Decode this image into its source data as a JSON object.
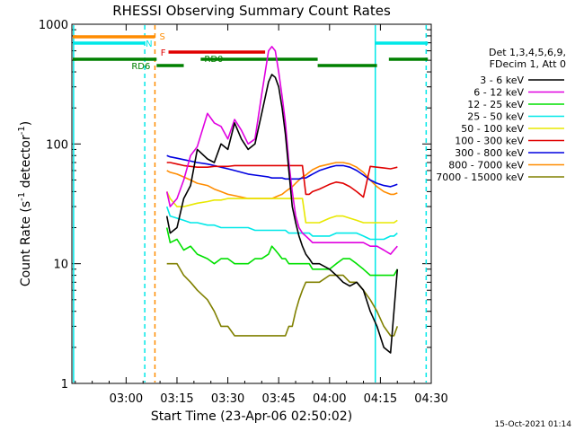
{
  "chart_data": {
    "type": "line",
    "title": "RHESSI Observing Summary Count Rates",
    "xlabel": "Start Time (23-Apr-06 02:50:02)",
    "ylabel": "Count Rate (s⁻¹ detector⁻¹)",
    "ylabel_main": "Count Rate (s",
    "ylabel_sup1": "-1",
    "ylabel_mid": " detector",
    "ylabel_sup2": "-1",
    "ylabel_end": ")",
    "yscale": "log",
    "ylim": [
      1,
      1000
    ],
    "xlim_minutes": [
      -6,
      100
    ],
    "x_ticks": [
      {
        "label": "03:00",
        "value": 10
      },
      {
        "label": "03:15",
        "value": 25
      },
      {
        "label": "03:30",
        "value": 40
      },
      {
        "label": "03:45",
        "value": 55
      },
      {
        "label": "04:00",
        "value": 70
      },
      {
        "label": "04:15",
        "value": 85
      },
      {
        "label": "04:30",
        "value": 100
      }
    ],
    "y_ticks": [
      {
        "label": "1",
        "value": 1
      },
      {
        "label": "10",
        "value": 10
      },
      {
        "label": "100",
        "value": 100
      },
      {
        "label": "1000",
        "value": 1000
      }
    ],
    "legend_header": [
      "Det 1,3,4,5,6,9,",
      "FDecim 1, Att 0"
    ],
    "series": [
      {
        "name": "3 - 6 keV",
        "color": "#000000",
        "x": [
          22,
          23,
          25,
          27,
          29,
          31,
          34,
          36,
          38,
          40,
          42,
          44,
          46,
          48,
          50,
          52,
          53,
          54,
          55,
          56,
          57,
          58,
          59,
          60,
          61,
          62,
          63,
          64,
          65,
          67,
          70,
          72,
          74,
          76,
          78,
          80,
          82,
          84,
          86,
          88,
          89,
          90
        ],
        "y": [
          25,
          18,
          20,
          35,
          45,
          90,
          75,
          70,
          100,
          90,
          150,
          110,
          90,
          100,
          180,
          330,
          380,
          360,
          300,
          200,
          120,
          60,
          30,
          22,
          17,
          14,
          12,
          11,
          10,
          10,
          9,
          8,
          7,
          6.5,
          7,
          6,
          4,
          3,
          2,
          1.8,
          4,
          9
        ]
      },
      {
        "name": "6 - 12 keV",
        "color": "#e000e0",
        "x": [
          22,
          23,
          25,
          27,
          29,
          31,
          34,
          36,
          38,
          40,
          42,
          44,
          46,
          48,
          50,
          52,
          53,
          54,
          55,
          56,
          57,
          58,
          59,
          60,
          61,
          62,
          63,
          64,
          65,
          67,
          70,
          72,
          74,
          76,
          78,
          80,
          82,
          84,
          86,
          88,
          89,
          90
        ],
        "y": [
          40,
          30,
          35,
          50,
          80,
          95,
          180,
          150,
          140,
          110,
          160,
          130,
          100,
          110,
          260,
          600,
          650,
          600,
          400,
          250,
          150,
          70,
          40,
          25,
          20,
          18,
          17,
          16,
          15,
          15,
          15,
          15,
          15,
          15,
          15,
          15,
          14,
          14,
          13,
          12,
          13,
          14
        ]
      },
      {
        "name": "12 - 25 keV",
        "color": "#00e000",
        "x": [
          22,
          23,
          25,
          27,
          29,
          31,
          34,
          36,
          38,
          40,
          42,
          44,
          46,
          48,
          50,
          52,
          53,
          54,
          55,
          56,
          57,
          58,
          59,
          60,
          61,
          62,
          63,
          64,
          65,
          67,
          70,
          72,
          74,
          76,
          78,
          80,
          82,
          84,
          86,
          88,
          89,
          90
        ],
        "y": [
          20,
          15,
          16,
          13,
          14,
          12,
          11,
          10,
          11,
          11,
          10,
          10,
          10,
          11,
          11,
          12,
          14,
          13,
          12,
          11,
          11,
          10,
          10,
          10,
          10,
          10,
          10,
          10,
          9,
          9,
          9,
          10,
          11,
          11,
          10,
          9,
          8,
          8,
          8,
          8,
          8,
          9
        ]
      },
      {
        "name": "25 - 50 keV",
        "color": "#00e8e8",
        "x": [
          22,
          23,
          25,
          27,
          29,
          31,
          34,
          36,
          38,
          40,
          42,
          44,
          46,
          48,
          50,
          52,
          53,
          54,
          55,
          56,
          57,
          58,
          59,
          60,
          61,
          62,
          63,
          64,
          65,
          67,
          70,
          72,
          74,
          76,
          78,
          80,
          82,
          84,
          86,
          88,
          89,
          90
        ],
        "y": [
          30,
          25,
          24,
          23,
          22,
          22,
          21,
          21,
          20,
          20,
          20,
          20,
          20,
          19,
          19,
          19,
          19,
          19,
          19,
          19,
          19,
          18,
          18,
          18,
          18,
          18,
          18,
          18,
          17,
          17,
          17,
          18,
          18,
          18,
          18,
          17,
          16,
          16,
          16,
          17,
          17,
          18
        ]
      },
      {
        "name": "50 - 100 keV",
        "color": "#e8e800",
        "x": [
          22,
          23,
          25,
          27,
          29,
          31,
          34,
          36,
          38,
          40,
          42,
          44,
          46,
          48,
          50,
          52,
          53,
          54,
          55,
          56,
          57,
          58,
          59,
          60,
          61,
          62,
          63,
          64,
          65,
          67,
          70,
          72,
          74,
          76,
          78,
          80,
          82,
          84,
          86,
          88,
          89,
          90
        ],
        "y": [
          40,
          35,
          30,
          30,
          31,
          32,
          33,
          34,
          34,
          35,
          35,
          35,
          35,
          35,
          35,
          35,
          35,
          35,
          35,
          35,
          35,
          35,
          35,
          35,
          35,
          35,
          22,
          22,
          22,
          22,
          24,
          25,
          25,
          24,
          23,
          22,
          22,
          22,
          22,
          22,
          22,
          23
        ]
      },
      {
        "name": "100 - 300 keV",
        "color": "#e00000",
        "x": [
          22,
          23,
          25,
          27,
          29,
          31,
          34,
          36,
          38,
          40,
          42,
          44,
          46,
          48,
          50,
          52,
          53,
          54,
          55,
          56,
          57,
          58,
          59,
          60,
          61,
          62,
          63,
          64,
          65,
          67,
          70,
          72,
          74,
          76,
          78,
          80,
          82,
          84,
          86,
          88,
          89,
          90
        ],
        "y": [
          70,
          70,
          68,
          66,
          65,
          64,
          64,
          65,
          65,
          65,
          66,
          66,
          66,
          66,
          66,
          66,
          66,
          66,
          66,
          66,
          66,
          66,
          66,
          66,
          66,
          66,
          38,
          38,
          40,
          42,
          46,
          48,
          47,
          44,
          40,
          36,
          65,
          64,
          63,
          62,
          63,
          64
        ]
      },
      {
        "name": "300 - 800 keV",
        "color": "#0000e0",
        "x": [
          22,
          23,
          25,
          27,
          29,
          31,
          34,
          36,
          38,
          40,
          42,
          44,
          46,
          48,
          50,
          52,
          53,
          54,
          55,
          56,
          57,
          58,
          59,
          60,
          61,
          62,
          63,
          64,
          65,
          67,
          70,
          72,
          74,
          76,
          78,
          80,
          82,
          84,
          86,
          88,
          89,
          90
        ],
        "y": [
          80,
          78,
          76,
          74,
          72,
          70,
          68,
          66,
          64,
          62,
          60,
          58,
          56,
          55,
          54,
          53,
          52,
          52,
          52,
          52,
          51,
          51,
          51,
          51,
          51,
          52,
          52,
          54,
          56,
          60,
          64,
          66,
          66,
          64,
          60,
          55,
          50,
          47,
          45,
          44,
          45,
          46
        ]
      },
      {
        "name": "800 - 7000 keV",
        "color": "#ff8c00",
        "x": [
          22,
          23,
          25,
          27,
          29,
          31,
          34,
          36,
          38,
          40,
          42,
          44,
          46,
          48,
          50,
          52,
          53,
          54,
          55,
          56,
          57,
          58,
          59,
          60,
          61,
          62,
          63,
          64,
          65,
          67,
          70,
          72,
          74,
          76,
          78,
          80,
          82,
          84,
          86,
          88,
          89,
          90
        ],
        "y": [
          60,
          58,
          56,
          53,
          50,
          47,
          45,
          42,
          40,
          38,
          37,
          36,
          35,
          35,
          35,
          35,
          35,
          36,
          37,
          38,
          40,
          42,
          44,
          47,
          50,
          53,
          55,
          58,
          61,
          65,
          68,
          70,
          70,
          68,
          64,
          58,
          50,
          44,
          40,
          38,
          38,
          39
        ]
      },
      {
        "name": "7000 - 15000 keV",
        "color": "#808000",
        "x": [
          22,
          23,
          25,
          27,
          29,
          31,
          34,
          36,
          38,
          40,
          42,
          44,
          46,
          48,
          50,
          52,
          53,
          54,
          55,
          56,
          57,
          58,
          59,
          60,
          61,
          62,
          63,
          64,
          65,
          67,
          70,
          72,
          74,
          76,
          78,
          80,
          82,
          84,
          86,
          88,
          89,
          90
        ],
        "y": [
          10,
          10,
          10,
          8,
          7,
          6,
          5,
          4,
          3,
          3,
          2.5,
          2.5,
          2.5,
          2.5,
          2.5,
          2.5,
          2.5,
          2.5,
          2.5,
          2.5,
          2.5,
          3,
          3,
          4,
          5,
          6,
          7,
          7,
          7,
          7,
          8,
          8,
          8,
          7,
          7,
          6,
          5,
          4,
          3,
          2.5,
          2.5,
          3
        ]
      }
    ],
    "vertical_lines": [
      {
        "x": -5.5,
        "style": "solid",
        "color": "#00e8e8"
      },
      {
        "x": 15.5,
        "style": "dashed",
        "color": "#00e8e8"
      },
      {
        "x": 18.5,
        "style": "dashed",
        "color": "#ff8c00"
      },
      {
        "x": 83.5,
        "style": "solid",
        "color": "#00e8e8"
      },
      {
        "x": 98.5,
        "style": "dashed",
        "color": "#00e8e8"
      }
    ],
    "flag_bars": [
      {
        "label": "S",
        "color": "#ff8c00",
        "level": "top",
        "segments": [
          [
            -6,
            18.5
          ]
        ]
      },
      {
        "label": "N",
        "color": "#00e8e8",
        "level": "second",
        "segments": [
          [
            -6,
            15.5
          ],
          [
            83.5,
            99
          ]
        ]
      },
      {
        "label": "F",
        "color": "#e00000",
        "level": "third",
        "segments": [
          [
            22.5,
            51
          ]
        ]
      },
      {
        "label": "RD0",
        "color": "#008000",
        "level": "fourth",
        "segments": [
          [
            -6,
            19
          ],
          [
            32,
            66.5
          ],
          [
            87.5,
            99
          ]
        ]
      },
      {
        "label": "RD6",
        "color": "#008000",
        "level": "fifth",
        "segments": [
          [
            19,
            27
          ],
          [
            66.5,
            84
          ]
        ]
      }
    ],
    "footer_date": "15-Oct-2021 01:14"
  }
}
